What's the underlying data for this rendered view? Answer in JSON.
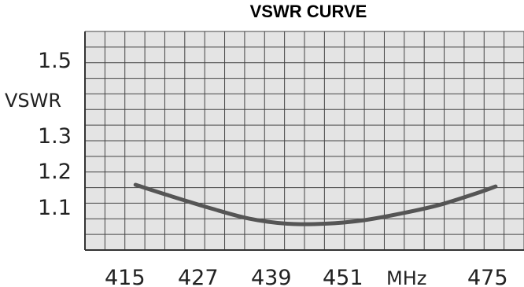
{
  "chart_data": {
    "type": "line",
    "title": "VSWR CURVE",
    "ylabel": "VSWR",
    "xlabel_unit": "MHz",
    "x_tick_labels": [
      "415",
      "427",
      "439",
      "451",
      "MHz",
      "475"
    ],
    "y_tick_labels": [
      "1.5",
      "1.3",
      "1.2",
      "1.1"
    ],
    "xlim": [
      407,
      475
    ],
    "ylim": [
      1.0,
      1.6
    ],
    "grid": true,
    "series": [
      {
        "x": [
          415,
          420,
          427,
          433,
          439,
          445,
          451,
          457,
          463,
          469,
          472
        ],
        "values": [
          1.18,
          1.15,
          1.11,
          1.08,
          1.065,
          1.065,
          1.075,
          1.095,
          1.12,
          1.155,
          1.175
        ]
      }
    ],
    "colors": {
      "line": "#555555",
      "grid": "#444444",
      "background": "#e4e4e4"
    }
  }
}
